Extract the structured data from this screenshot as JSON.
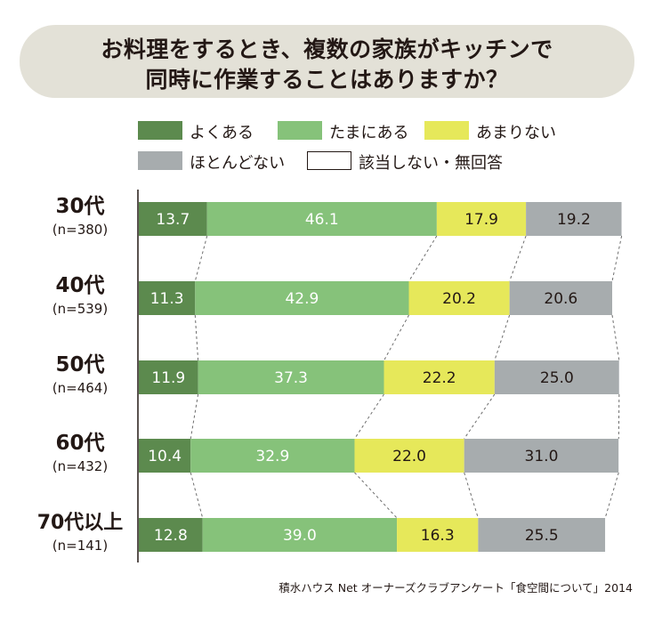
{
  "title": {
    "line1": "お料理をするとき、複数の家族がキッチンで",
    "line2": "同時に作業することはありますか？"
  },
  "legend": [
    {
      "label": "よくある",
      "color": "#5c8a4e"
    },
    {
      "label": "たまにある",
      "color": "#86c27a"
    },
    {
      "label": "あまりない",
      "color": "#e6e85a"
    },
    {
      "label": "ほとんどない",
      "color": "#a7acae"
    },
    {
      "label": "該当しない・無回答",
      "color": "#ffffff"
    }
  ],
  "source": "積水ハウス Net オーナーズクラブアンケート「食空間について」2014",
  "chart_data": {
    "type": "bar",
    "orientation": "horizontal",
    "stacked": true,
    "categories": [
      "30代",
      "40代",
      "50代",
      "60代",
      "70代以上"
    ],
    "sample_sizes": [
      "(n=380)",
      "(n=539)",
      "(n=464)",
      "(n=432)",
      "(n=141)"
    ],
    "series": [
      {
        "name": "よくある",
        "color": "#5c8a4e",
        "values": [
          13.7,
          11.3,
          11.9,
          10.4,
          12.8
        ]
      },
      {
        "name": "たまにある",
        "color": "#86c27a",
        "values": [
          46.1,
          42.9,
          37.3,
          32.9,
          39.0
        ]
      },
      {
        "name": "あまりない",
        "color": "#e6e85a",
        "values": [
          17.9,
          20.2,
          22.2,
          22.0,
          16.3
        ]
      },
      {
        "name": "ほとんどない",
        "color": "#a7acae",
        "values": [
          19.2,
          20.6,
          25.0,
          31.0,
          25.5
        ]
      },
      {
        "name": "該当しない・無回答",
        "color": "#ffffff",
        "values": [
          3.1,
          5.0,
          3.6,
          3.7,
          6.4
        ]
      }
    ],
    "value_labels": [
      [
        "13.7",
        "46.1",
        "17.9",
        "19.2"
      ],
      [
        "11.3",
        "42.9",
        "20.2",
        "20.6"
      ],
      [
        "11.9",
        "37.3",
        "22.2",
        "25.0"
      ],
      [
        "10.4",
        "32.9",
        "22.0",
        "31.0"
      ],
      [
        "12.8",
        "39.0",
        "16.3",
        "25.5"
      ]
    ],
    "xlim": [
      0,
      100
    ],
    "connector_lines": "dashed"
  }
}
